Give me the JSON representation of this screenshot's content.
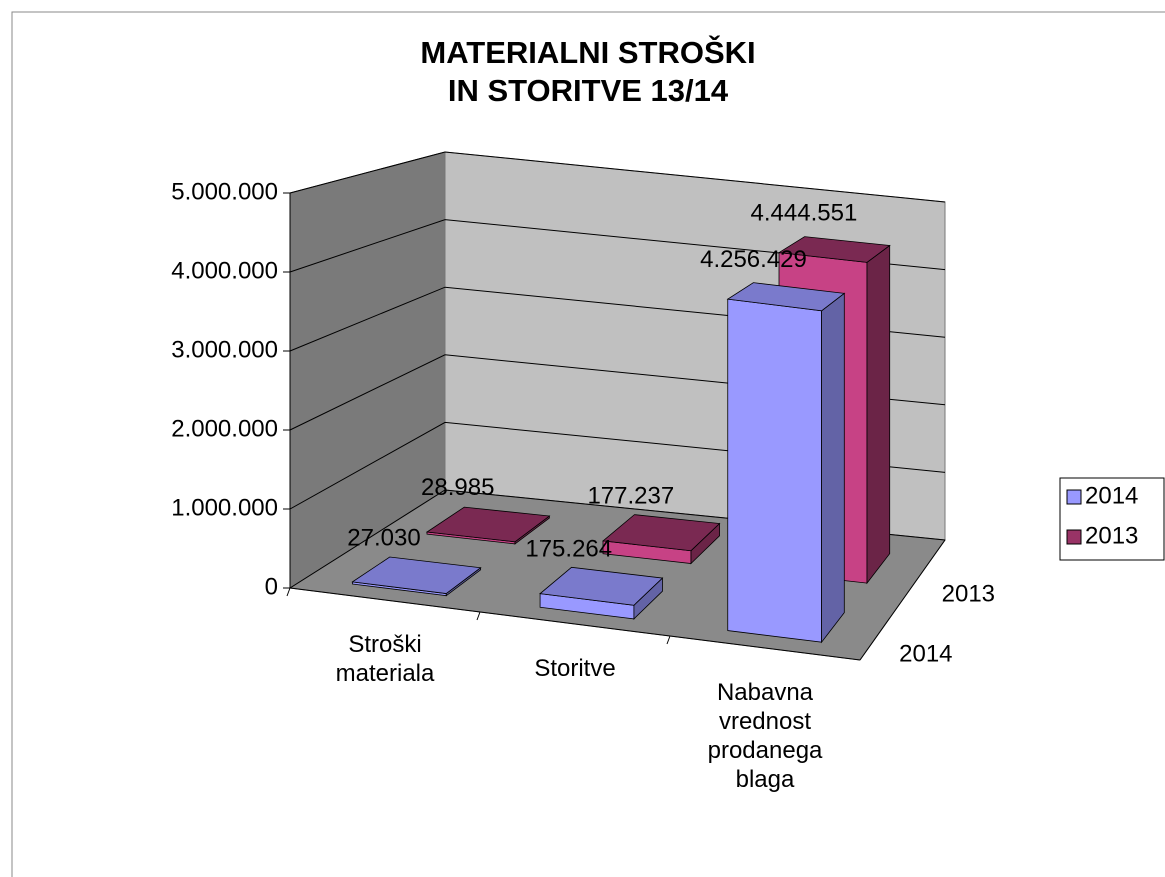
{
  "chart_data": {
    "type": "bar3d",
    "title": "MATERIALNI STROŠKI\nIN STORITVE 13/14",
    "categories": [
      "Stroški\nmateriala",
      "Storitve",
      "Nabavna\nvrednost\nprodanega\nblaga"
    ],
    "series": [
      {
        "name": "2014",
        "color": "#9999ff",
        "values": [
          27030,
          175264,
          4256429
        ],
        "value_labels": [
          "27.030",
          "175.264",
          "4.256.429"
        ]
      },
      {
        "name": "2013",
        "color": "#993366",
        "values": [
          28985,
          177237,
          4444551
        ],
        "value_labels": [
          "28.985",
          "177.237",
          "4.444.551"
        ]
      }
    ],
    "ylim": [
      0,
      5000000
    ],
    "yticks": [
      0,
      {
        "value": 1000000,
        "label": "1.000.000"
      },
      {
        "value": 2000000,
        "label": "2.000.000"
      },
      {
        "value": 3000000,
        "label": "3.000.000"
      },
      {
        "value": 4000000,
        "label": "4.000.000"
      },
      {
        "value": 5000000,
        "label": "5.000.000"
      }
    ],
    "grid": true,
    "legend": "right"
  }
}
